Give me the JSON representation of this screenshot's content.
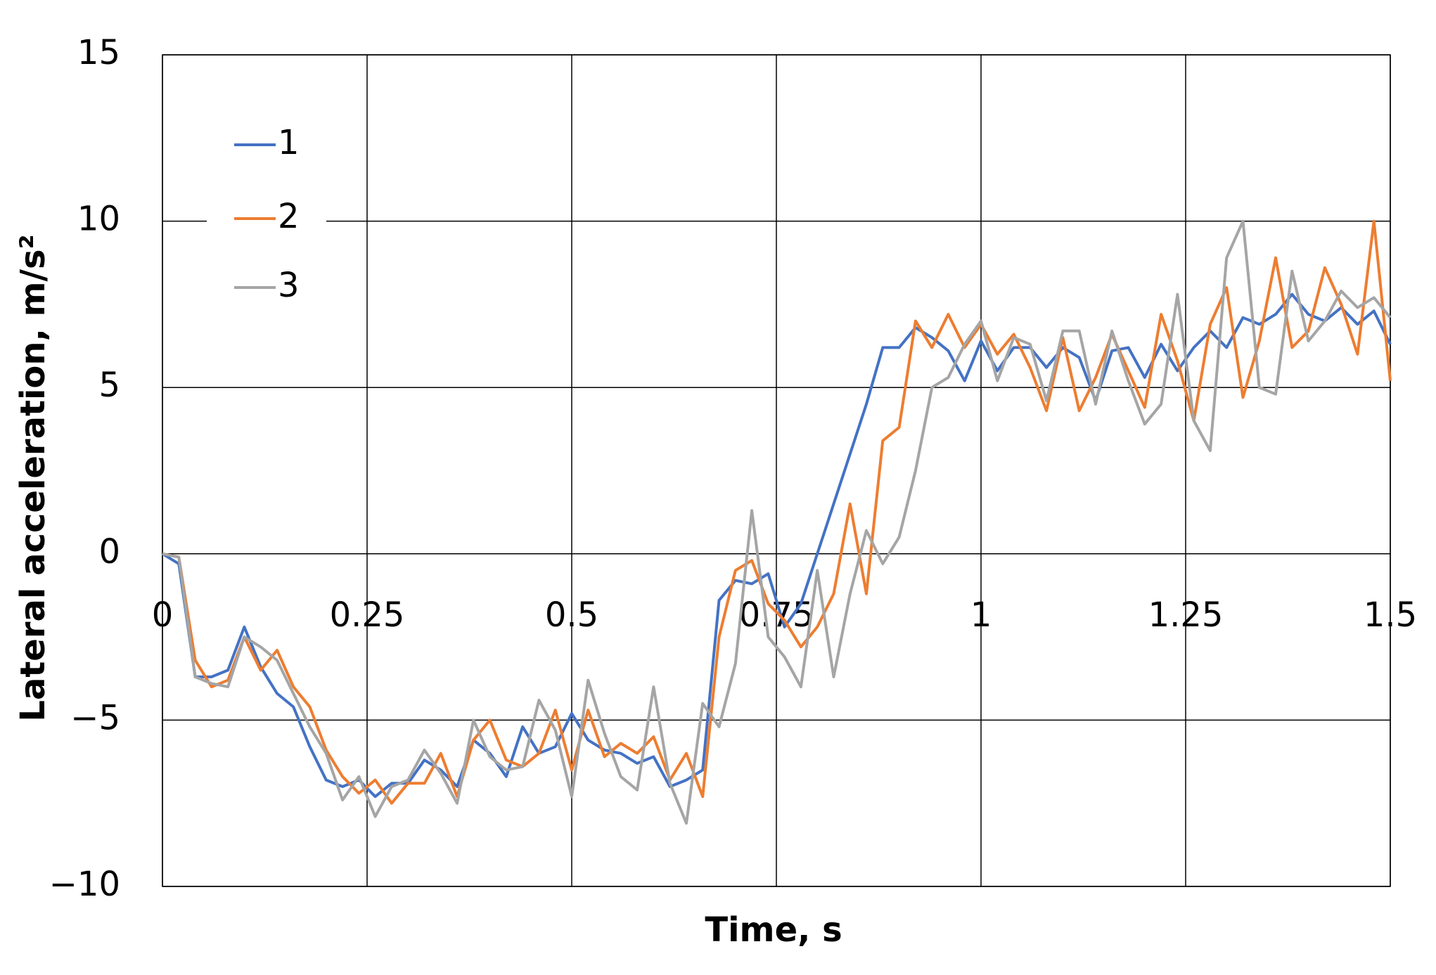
{
  "chart_data": {
    "type": "line",
    "x_label": "Time, s",
    "y_label": "Lateral acceleration, m/s²",
    "x": [
      0,
      0.02,
      0.04,
      0.06,
      0.08,
      0.1,
      0.12,
      0.14,
      0.16,
      0.18,
      0.2,
      0.22,
      0.24,
      0.26,
      0.28,
      0.3,
      0.32,
      0.34,
      0.36,
      0.38,
      0.4,
      0.42,
      0.44,
      0.46,
      0.48,
      0.5,
      0.52,
      0.54,
      0.56,
      0.58,
      0.6,
      0.62,
      0.64,
      0.66,
      0.68,
      0.7,
      0.72,
      0.74,
      0.76,
      0.78,
      0.8,
      0.82,
      0.84,
      0.86,
      0.88,
      0.9,
      0.92,
      0.94,
      0.96,
      0.98,
      1,
      1.02,
      1.04,
      1.06,
      1.08,
      1.1,
      1.12,
      1.14,
      1.16,
      1.18,
      1.2,
      1.22,
      1.24,
      1.26,
      1.28,
      1.3,
      1.32,
      1.34,
      1.36,
      1.38,
      1.4,
      1.42,
      1.44,
      1.46,
      1.48,
      1.5
    ],
    "series": [
      {
        "name": "1",
        "color": "#4472c4",
        "values": [
          0,
          -0.3,
          -3.7,
          -3.7,
          -3.5,
          -2.2,
          -3.4,
          -4.2,
          -4.6,
          -5.8,
          -6.8,
          -7.0,
          -6.8,
          -7.3,
          -6.9,
          -6.9,
          -6.2,
          -6.5,
          -7.0,
          -5.6,
          -6.0,
          -6.7,
          -5.2,
          -6.0,
          -5.8,
          -4.8,
          -5.6,
          -5.9,
          -6.0,
          -6.3,
          -6.1,
          -7.0,
          -6.8,
          -6.5,
          -1.4,
          -0.8,
          -0.9,
          -0.6,
          -2.2,
          -1.5,
          0.0,
          1.5,
          3.0,
          4.5,
          6.2,
          6.2,
          6.8,
          6.5,
          6.1,
          5.2,
          6.4,
          5.5,
          6.2,
          6.2,
          5.6,
          6.2,
          5.9,
          4.6,
          6.1,
          6.2,
          5.3,
          6.3,
          5.5,
          6.2,
          6.7,
          6.2,
          7.1,
          6.9,
          7.2,
          7.8,
          7.2,
          7.0,
          7.4,
          6.9,
          7.3,
          6.3
        ]
      },
      {
        "name": "2",
        "color": "#ed7d31",
        "values": [
          0,
          -0.1,
          -3.2,
          -4.0,
          -3.8,
          -2.5,
          -3.5,
          -2.9,
          -4.0,
          -4.6,
          -5.9,
          -6.7,
          -7.2,
          -6.8,
          -7.5,
          -6.9,
          -6.9,
          -6.0,
          -7.3,
          -5.6,
          -5.0,
          -6.2,
          -6.4,
          -6.0,
          -4.7,
          -6.5,
          -4.7,
          -6.1,
          -5.7,
          -6.0,
          -5.5,
          -6.8,
          -6.0,
          -7.3,
          -2.5,
          -0.5,
          -0.2,
          -1.5,
          -2.0,
          -2.8,
          -2.2,
          -1.2,
          1.5,
          -1.2,
          3.4,
          3.8,
          7.0,
          6.2,
          7.2,
          6.2,
          6.9,
          6.0,
          6.6,
          5.6,
          4.3,
          6.5,
          4.3,
          5.3,
          6.6,
          5.5,
          4.4,
          7.2,
          5.8,
          4.0,
          6.9,
          8.0,
          4.7,
          6.4,
          8.9,
          6.2,
          6.7,
          8.6,
          7.5,
          6.0,
          10.0,
          5.2
        ]
      },
      {
        "name": "3",
        "color": "#a5a5a5",
        "values": [
          0,
          -0.1,
          -3.7,
          -3.9,
          -4.0,
          -2.5,
          -2.8,
          -3.2,
          -4.2,
          -5.2,
          -6.0,
          -7.4,
          -6.7,
          -7.9,
          -7.0,
          -6.8,
          -5.9,
          -6.6,
          -7.5,
          -5.0,
          -6.1,
          -6.5,
          -6.4,
          -4.4,
          -5.3,
          -7.3,
          -3.8,
          -5.4,
          -6.7,
          -7.1,
          -4.0,
          -6.9,
          -8.1,
          -4.5,
          -5.2,
          -3.3,
          1.3,
          -2.5,
          -3.1,
          -4.0,
          -0.5,
          -3.7,
          -1.2,
          0.7,
          -0.3,
          0.5,
          2.5,
          5.0,
          5.3,
          6.3,
          7.0,
          5.2,
          6.5,
          6.3,
          4.6,
          6.7,
          6.7,
          4.5,
          6.7,
          5.2,
          3.9,
          4.5,
          7.8,
          4.0,
          3.1,
          8.9,
          10.0,
          5.0,
          4.8,
          8.5,
          6.4,
          7.0,
          7.9,
          7.4,
          7.7,
          7.1
        ]
      }
    ],
    "xlim": [
      0,
      1.5
    ],
    "xticks": [
      0,
      0.25,
      0.5,
      0.75,
      1,
      1.25,
      1.5
    ],
    "ylim": [
      -10,
      15
    ],
    "yticks": [
      {
        "value": -10,
        "label": "−10"
      },
      {
        "value": -5,
        "label": "−5"
      },
      0,
      5,
      10,
      15
    ],
    "grid": true,
    "legend": "upper left"
  }
}
